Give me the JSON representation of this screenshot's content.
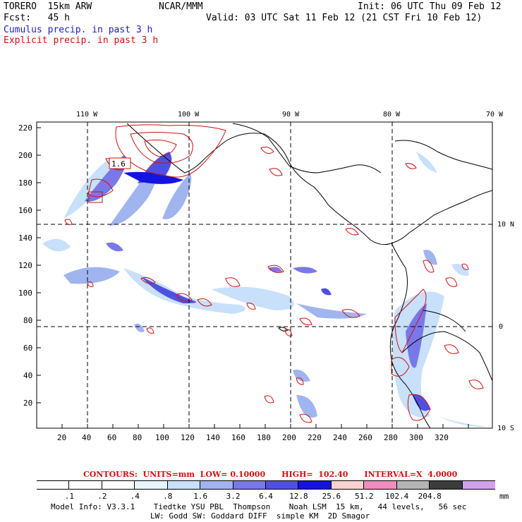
{
  "header": {
    "model": "TORERO  15km ARW",
    "org": "NCAR/MMM",
    "init": "Init: 06 UTC Thu 09 Feb 12",
    "fcst": "Fcst:   45 h",
    "valid": "Valid: 03 UTC Sat 11 Feb 12 (21 CST Fri 10 Feb 12)",
    "legend_cumulus": "Cumulus precip. in past 3 h",
    "legend_explicit": "Explicit precip. in past 3 h"
  },
  "colors": {
    "cumulus_text": "#1c1cc8",
    "explicit_contour": "#d01010",
    "frame": "#000000"
  },
  "map": {
    "top_lon_labels": [
      "110 W",
      "100 W",
      "90 W",
      "80 W",
      "70 W"
    ],
    "right_lat_labels": [
      "10 N",
      "0",
      "10 S"
    ],
    "y_grid_labels": [
      "220",
      "200",
      "180",
      "160",
      "140",
      "120",
      "100",
      "80",
      "60",
      "40",
      "20"
    ],
    "x_grid_labels": [
      "20",
      "40",
      "60",
      "80",
      "100",
      "120",
      "140",
      "160",
      "180",
      "200",
      "220",
      "240",
      "260",
      "280",
      "300",
      "320"
    ],
    "box_label": "1.6"
  },
  "contours_info": "CONTOURS:  UNITS=mm  LOW= 0.10000      HIGH=  102.40      INTERVAL=X  4.0000",
  "colorbar": {
    "labels": [
      ".1",
      ".2",
      ".4",
      ".8",
      "1.6",
      "3.2",
      "6.4",
      "12.8",
      "25.6",
      "51.2",
      "102.4",
      "204.8"
    ],
    "unit": "mm",
    "colors": [
      "#ffffff",
      "#ffffff",
      "#ffffff",
      "#e8f4ff",
      "#c8e0fa",
      "#a0b4f0",
      "#7878e8",
      "#5050e0",
      "#1414e0",
      "#fad2d2",
      "#f08cbe",
      "#b4b4b4",
      "#3c3c3c",
      "#d2a0f0"
    ]
  },
  "footer": {
    "line1": "Model Info: V3.3.1    Tiedtke YSU PBL  Thompson    Noah LSM  15 km,   44 levels,   56 sec",
    "line2": "LW: Godd SW: Goddard DIFF  simple KM  2D Smagor"
  }
}
